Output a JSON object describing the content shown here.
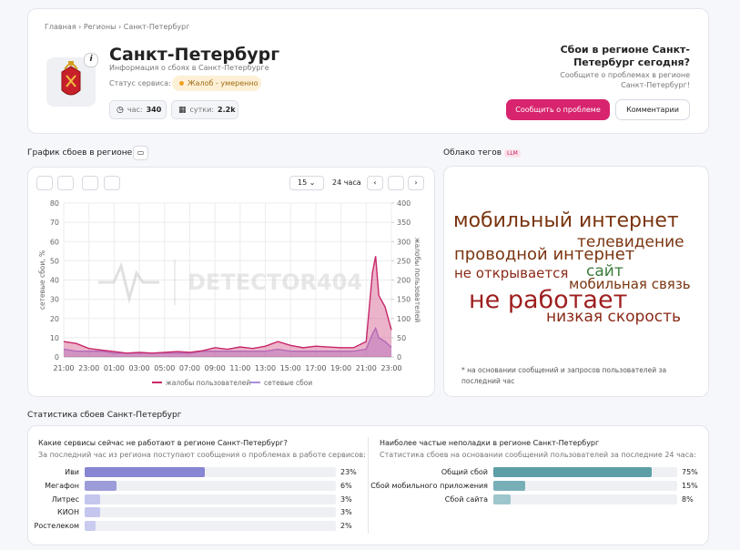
{
  "breadcrumb": [
    "Главная",
    "Регионы",
    "Санкт-Петербург"
  ],
  "header": {
    "title": "Санкт-Петербург",
    "subtitle": "Информация о сбоях в Санкт-Петербурге",
    "status_label": "Статус сервиса:",
    "status": "Жалоб - умеренно",
    "hour_label": "час:",
    "hour_value": "340",
    "day_label": "сутки:",
    "day_value": "2.2k"
  },
  "cta": {
    "title": "Сбои в регионе Санкт-Петербург сегодня?",
    "text": "Сообщите о проблемах в регионе Санкт-Петербург!",
    "report_button": "Сообщить о проблеме",
    "comments_button": "Комментарии"
  },
  "chart_section": {
    "title": "График сбоев в регионе",
    "interval": "15",
    "period": "24 часа",
    "watermark": "DETECTOR404",
    "chart_data": {
      "type": "line",
      "ylabel": "сетевые сбои, %",
      "y2label": "жалобы пользователей",
      "grid": true,
      "x": [
        0,
        1,
        2,
        3,
        4,
        5,
        6,
        7,
        8,
        9,
        10,
        11,
        12,
        13,
        14,
        15,
        16,
        17,
        18,
        19,
        20,
        21,
        22,
        23,
        24,
        24.5,
        24.75,
        25,
        25.5,
        26
      ],
      "xlim": [
        0,
        26
      ],
      "xticks": [
        {
          "value": 0,
          "label": "21:00"
        },
        {
          "value": 2,
          "label": "23:00"
        },
        {
          "value": 4,
          "label": "01:00"
        },
        {
          "value": 6,
          "label": "03:00"
        },
        {
          "value": 8,
          "label": "05:00"
        },
        {
          "value": 10,
          "label": "07:00"
        },
        {
          "value": 12,
          "label": "09:00"
        },
        {
          "value": 14,
          "label": "11:00"
        },
        {
          "value": 16,
          "label": "13:00"
        },
        {
          "value": 18,
          "label": "15:00"
        },
        {
          "value": 20,
          "label": "17:00"
        },
        {
          "value": 22,
          "label": "19:00"
        },
        {
          "value": 24,
          "label": "21:00"
        },
        {
          "value": 26,
          "label": "23:00"
        }
      ],
      "ylim": [
        0,
        80
      ],
      "yticks": [
        0,
        10,
        20,
        30,
        40,
        50,
        60,
        70,
        80
      ],
      "y2lim": [
        0,
        400
      ],
      "y2ticks": [
        0,
        50,
        100,
        150,
        200,
        250,
        300,
        350,
        400
      ],
      "series": [
        {
          "name": "жалобы пользователей",
          "color": "#c8276a",
          "axis": "y2",
          "values": [
            40,
            35,
            22,
            18,
            14,
            10,
            12,
            10,
            12,
            14,
            12,
            16,
            24,
            20,
            26,
            22,
            28,
            40,
            30,
            24,
            28,
            26,
            24,
            24,
            40,
            220,
            262,
            160,
            130,
            70
          ]
        },
        {
          "name": "сетевые сбои",
          "color": "#a98ee0",
          "axis": "y",
          "values": [
            4,
            3,
            3,
            3,
            2,
            2,
            2,
            2,
            2,
            2,
            2,
            3,
            3,
            3,
            3,
            3,
            3,
            4,
            3,
            3,
            3,
            3,
            3,
            3,
            4,
            12,
            15,
            10,
            8,
            5
          ]
        }
      ]
    }
  },
  "tag_cloud": {
    "title": "Облако тегов",
    "badge": "LLM",
    "tags": [
      {
        "text": "мобильный интернет",
        "color": "#7a3510"
      },
      {
        "text": "телевидение",
        "color": "#7a3510"
      },
      {
        "text": "проводной интернет",
        "color": "#7a3510"
      },
      {
        "text": "не открывается",
        "color": "#8a2a18"
      },
      {
        "text": "сайт",
        "color": "#3d7c3a"
      },
      {
        "text": "мобильная связь",
        "color": "#7a3510"
      },
      {
        "text": "не работает",
        "color": "#9e1f1f"
      },
      {
        "text": "низкая скорость",
        "color": "#8a2a18"
      }
    ],
    "note": "* на основании сообщений и запросов пользователей за последний час"
  },
  "stats": {
    "title": "Статистика сбоев Санкт-Петербург",
    "services": {
      "title": "Какие сервисы сейчас не работают в регионе Санкт-Петербург?",
      "subtitle": "За последний час из региона поступают сообщения о проблемах в работе сервисов:",
      "categories": [
        "Иви",
        "Мегафон",
        "Литрес",
        "КИОН",
        "Ростелеком"
      ],
      "values": [
        23,
        6,
        3,
        3,
        2
      ],
      "value_labels": [
        "23%",
        "6%",
        "3%",
        "3%",
        "2%"
      ],
      "colors": [
        "#8686d2",
        "#9c9cd9",
        "#c4c6ee",
        "#c4c6ee",
        "#c9cbef"
      ],
      "xlim": [
        0,
        48
      ]
    },
    "problems": {
      "title": "Наиболее частые неполадки в регионе Санкт-Петербург",
      "subtitle": "Статистика сбоев на основании сообщений пользователей за последние 24 часа:",
      "categories": [
        "Общий сбой",
        "Сбой мобильного приложения",
        "Сбой сайта"
      ],
      "values": [
        75,
        15,
        8
      ],
      "value_labels": [
        "75%",
        "15%",
        "8%"
      ],
      "colors": [
        "#5d9fa7",
        "#78afb7",
        "#9cc6cb"
      ],
      "xlim": [
        0,
        87
      ]
    }
  }
}
